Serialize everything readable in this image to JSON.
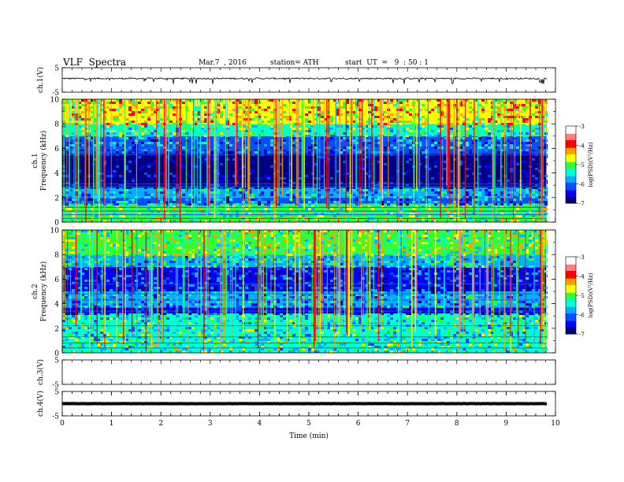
{
  "header": {
    "title": "VLF  Spectra",
    "date": "Mar.7  , 2016",
    "station": "station= ATH",
    "start": "start  UT  =   9  : 50 : 1"
  },
  "colors": {
    "spectrogram_scale": [
      "#000080",
      "#0000ff",
      "#0050ff",
      "#00b0ff",
      "#00ffd0",
      "#30ff30",
      "#ffff00",
      "#ffa000",
      "#ff0000",
      "#ff8080",
      "#ffffff"
    ]
  },
  "chart_data": [
    {
      "type": "line",
      "id": "ch1-waveform",
      "ylabel": "ch.1(V)",
      "ylim": [
        -5,
        5
      ],
      "y_ticks": [
        "5",
        "-5"
      ],
      "baseline": 0.6,
      "noise_amplitude": 0.3
    },
    {
      "type": "heatmap",
      "id": "ch1-spectrogram",
      "ylabel": "ch.1\nFrequency (kHz)",
      "ylabel_lines": [
        "ch.1",
        "Frequency  (kHz)"
      ],
      "ylim": [
        0,
        10
      ],
      "y_ticks": [
        "0",
        "2",
        "4",
        "6",
        "8",
        "10"
      ],
      "colorbar": {
        "label": "log(PSD)(V²/Hz)",
        "range": [
          -7,
          -3
        ],
        "ticks": [
          "-3",
          "-4",
          "-5",
          "-6",
          "-7"
        ]
      },
      "bands_khz": [
        {
          "from": 0,
          "to": 1.5,
          "level": -5.0
        },
        {
          "from": 1.5,
          "to": 2.0,
          "level": -6.0
        },
        {
          "from": 2.0,
          "to": 2.8,
          "level": -5.8
        },
        {
          "from": 2.8,
          "to": 5.6,
          "level": -6.8
        },
        {
          "from": 5.6,
          "to": 6.0,
          "level": -6.2
        },
        {
          "from": 6.0,
          "to": 7.0,
          "level": -6.0
        },
        {
          "from": 7.0,
          "to": 8.0,
          "level": -5.3
        },
        {
          "from": 8.0,
          "to": 10.0,
          "level": -4.5
        }
      ],
      "lines_khz": [
        0.3,
        0.6,
        0.9,
        1.2,
        2.9,
        3.1,
        5.5,
        5.9
      ]
    },
    {
      "type": "heatmap",
      "id": "ch2-spectrogram",
      "ylabel": "ch.2\nFrequency (kHz)",
      "ylabel_lines": [
        "ch.2",
        "Frequency  (kHz)"
      ],
      "ylim": [
        0,
        10
      ],
      "y_ticks": [
        "0",
        "2",
        "4",
        "6",
        "8",
        "10"
      ],
      "colorbar": {
        "label": "log(PSD)(V²/Hz)",
        "range": [
          -7,
          -3
        ],
        "ticks": [
          "-3",
          "-4",
          "-5",
          "-6",
          "-7"
        ]
      },
      "bands_khz": [
        {
          "from": 0,
          "to": 1.0,
          "level": -5.2
        },
        {
          "from": 1.0,
          "to": 3.2,
          "level": -5.4
        },
        {
          "from": 3.2,
          "to": 3.7,
          "level": -6.6
        },
        {
          "from": 3.7,
          "to": 5.0,
          "level": -5.9
        },
        {
          "from": 5.0,
          "to": 5.8,
          "level": -6.4
        },
        {
          "from": 5.8,
          "to": 7.0,
          "level": -6.3
        },
        {
          "from": 7.0,
          "to": 8.0,
          "level": -5.6
        },
        {
          "from": 8.0,
          "to": 10.0,
          "level": -5.0
        }
      ],
      "lines_khz": [
        0.4,
        0.8,
        1.3,
        2.2,
        3.4,
        4.3,
        4.8,
        5.6
      ]
    },
    {
      "type": "line",
      "id": "ch3-waveform",
      "ylabel": "ch.3(V)",
      "ylim": [
        -5,
        5
      ],
      "y_ticks": [
        "5",
        "-5"
      ],
      "baseline": null,
      "noise_amplitude": 0
    },
    {
      "type": "line",
      "id": "ch4-waveform",
      "ylabel": "ch.4(V)",
      "ylim": [
        -5,
        5
      ],
      "y_ticks": [
        "5",
        "-5"
      ],
      "baseline": 0.0,
      "noise_amplitude": 0.05
    }
  ],
  "time_axis": {
    "xlabel": "Time  (min)",
    "xlim": [
      0,
      10
    ],
    "ticks": [
      "0",
      "1",
      "2",
      "3",
      "4",
      "5",
      "6",
      "7",
      "8",
      "9",
      "10"
    ],
    "data_end_min": 9.82
  }
}
